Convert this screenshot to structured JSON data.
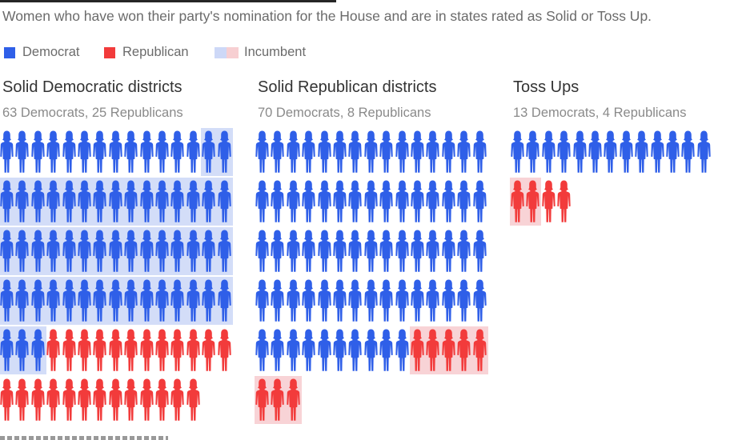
{
  "subtitle": "Women who have won their party's nomination for the House and are in states rated as Solid or Toss Up.",
  "legend": [
    {
      "key": "dem",
      "label": "Democrat",
      "color": "#2f5fe8"
    },
    {
      "key": "rep",
      "label": "Republican",
      "color": "#f23b3b"
    },
    {
      "key": "inc",
      "label": "Incumbent",
      "colors": [
        "#cdd8f7",
        "#f7cfd2"
      ]
    }
  ],
  "colors": {
    "democrat": "#2f5fe8",
    "republican": "#f23b3b",
    "incumbent_democrat_bg": "#d3ddf8",
    "incumbent_republican_bg": "#f8d3d6"
  },
  "chart_data": [
    {
      "type": "pictograph",
      "title": "Solid Democratic districts",
      "subtitle": "63 Democrats, 25 Republicans",
      "per_row": 15,
      "series": [
        {
          "name": "Democrat",
          "count": 63,
          "incumbent_count": 50
        },
        {
          "name": "Republican",
          "count": 25,
          "incumbent_count": 0
        }
      ]
    },
    {
      "type": "pictograph",
      "title": "Solid Republican districts",
      "subtitle": "70 Democrats, 8 Republicans",
      "per_row": 15,
      "series": [
        {
          "name": "Democrat",
          "count": 70,
          "incumbent_count": 0
        },
        {
          "name": "Republican",
          "count": 8,
          "incumbent_count": 8
        }
      ]
    },
    {
      "type": "pictograph",
      "title": "Toss Ups",
      "subtitle": "13 Democrats, 4 Republicans",
      "per_row": 13,
      "series": [
        {
          "name": "Democrat",
          "count": 13,
          "incumbent_count": 0
        },
        {
          "name": "Republican",
          "count": 4,
          "incumbent_count": 2
        }
      ]
    }
  ]
}
